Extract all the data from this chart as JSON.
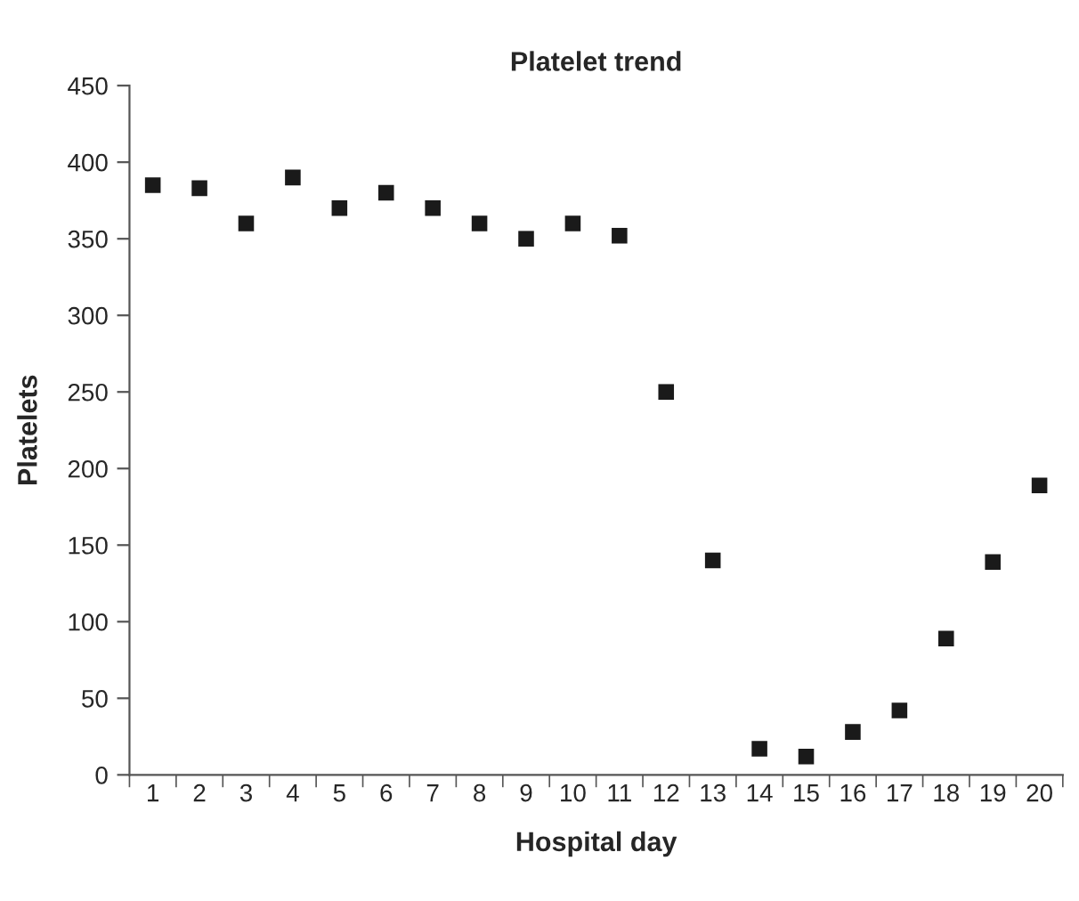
{
  "chart_data": {
    "type": "scatter",
    "title": "Platelet trend",
    "xlabel": "Hospital day",
    "ylabel": "Platelets",
    "categories": [
      "1",
      "2",
      "3",
      "4",
      "5",
      "6",
      "7",
      "8",
      "9",
      "10",
      "11",
      "12",
      "13",
      "14",
      "15",
      "16",
      "17",
      "18",
      "19",
      "20"
    ],
    "series": [
      {
        "color": "#1a1a1a",
        "values": [
          385,
          383,
          360,
          390,
          370,
          380,
          370,
          360,
          350,
          360,
          352,
          250,
          140,
          17,
          12,
          28,
          42,
          89,
          139,
          189
        ]
      }
    ],
    "ylim": [
      0,
      450
    ],
    "yticks": [
      0,
      50,
      100,
      150,
      200,
      250,
      300,
      350,
      400,
      450
    ],
    "grid": false,
    "marker": "square"
  }
}
